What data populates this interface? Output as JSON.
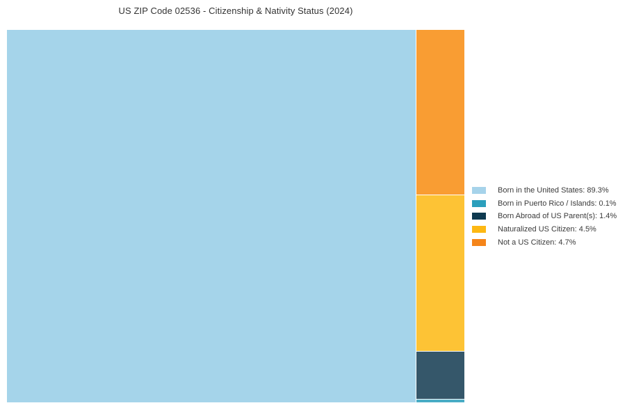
{
  "title": {
    "text": "US ZIP Code 02536 - Citizenship & Nativity Status (2024)"
  },
  "colors": {
    "background": "#ffffff",
    "title_text": "#333333",
    "legend_text": "#3a3a3a"
  },
  "chart_data": {
    "type": "treemap",
    "title": "US ZIP Code 02536 - Citizenship & Nativity Status (2024)",
    "unit": "percent",
    "legend_position": "right",
    "categories": [
      "Born in the United States",
      "Born in Puerto Rico / Islands",
      "Born Abroad of US Parent(s)",
      "Naturalized US Citizen",
      "Not a US Citizen"
    ],
    "values": [
      89.3,
      0.1,
      1.4,
      4.5,
      4.7
    ],
    "series": [
      {
        "name": "Born in the United States",
        "value_pct": 89.3,
        "tile_color": "#a5d4ea",
        "legend_color": "#a6d3ea"
      },
      {
        "name": "Born in Puerto Rico / Islands",
        "value_pct": 0.1,
        "tile_color": "#49acc5",
        "legend_color": "#2b9fbc"
      },
      {
        "name": "Born Abroad of US Parent(s)",
        "value_pct": 1.4,
        "tile_color": "#35576a",
        "legend_color": "#0f3a50"
      },
      {
        "name": "Naturalized US Citizen",
        "value_pct": 4.5,
        "tile_color": "#fdc335",
        "legend_color": "#fdb813"
      },
      {
        "name": "Not a US Citizen",
        "value_pct": 4.7,
        "tile_color": "#f99d33",
        "legend_color": "#f5851a"
      }
    ]
  },
  "legend": {
    "items": [
      {
        "label": "Born in the United States: 89.3%",
        "color": "#a6d3ea"
      },
      {
        "label": "Born in Puerto Rico / Islands: 0.1%",
        "color": "#2b9fbc"
      },
      {
        "label": "Born Abroad of US Parent(s): 1.4%",
        "color": "#0f3a50"
      },
      {
        "label": "Naturalized US Citizen: 4.5%",
        "color": "#fdb813"
      },
      {
        "label": "Not a US Citizen: 4.7%",
        "color": "#f5851a"
      }
    ]
  }
}
